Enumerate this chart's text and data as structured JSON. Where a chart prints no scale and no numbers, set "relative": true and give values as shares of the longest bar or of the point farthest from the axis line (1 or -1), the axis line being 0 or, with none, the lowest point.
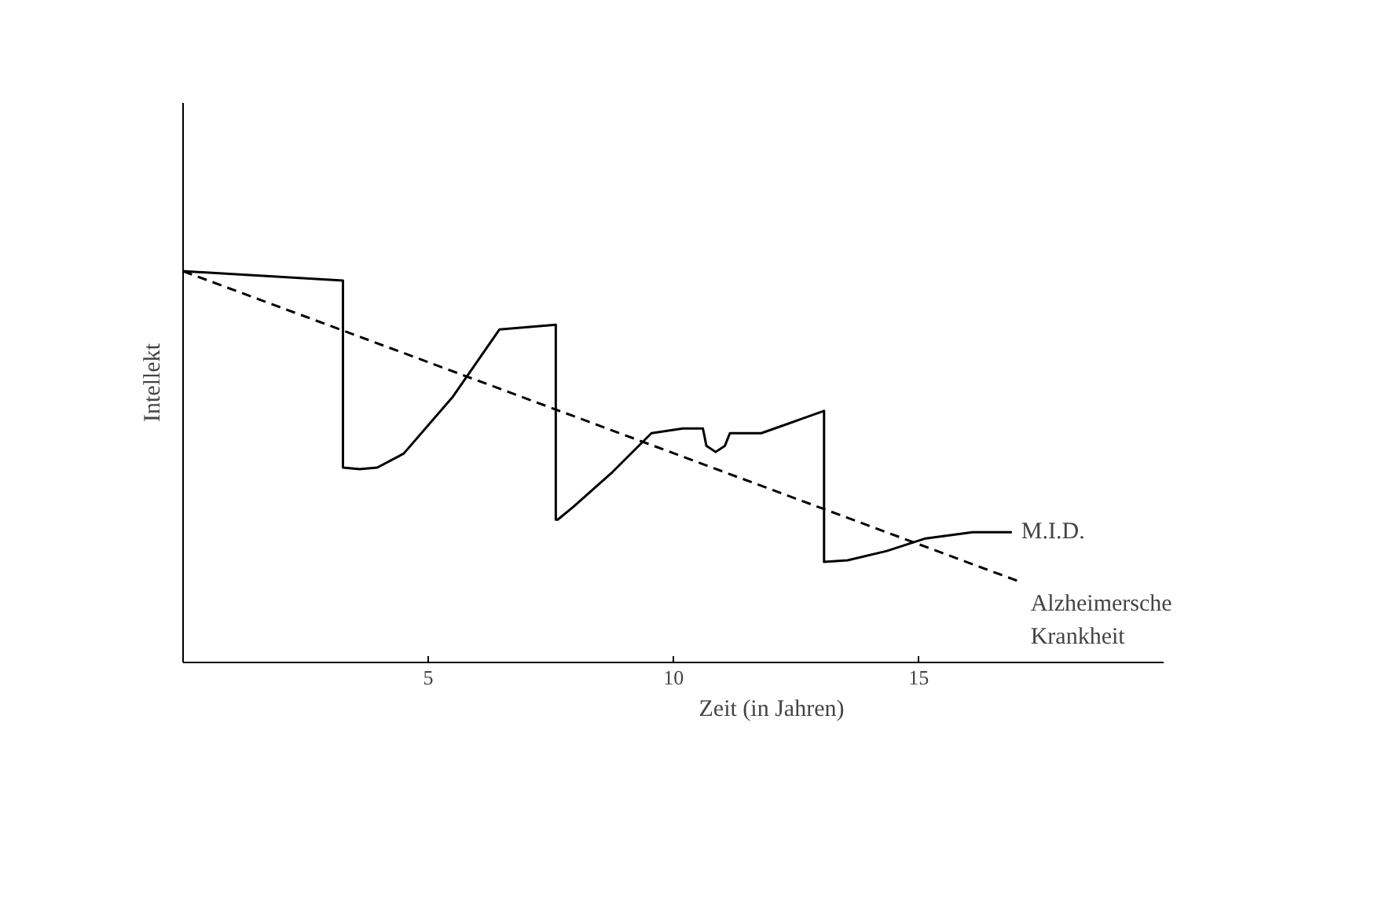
{
  "chart_data": {
    "type": "line",
    "relative": true,
    "xlabel": "Zeit (in Jahren)",
    "ylabel": "Intellekt",
    "xlim": [
      0,
      20
    ],
    "xticks": [
      5,
      10,
      15
    ],
    "tick_labels": "x",
    "grid": false,
    "series": [
      {
        "name": "M.I.D.",
        "color": "#000000",
        "line_style": "solid",
        "x": [
          0,
          3.26,
          3.26,
          3.6,
          3.96,
          4.5,
          5.5,
          6.45,
          7.6,
          7.6,
          7.64,
          7.96,
          8.75,
          9.55,
          10.19,
          10.35,
          10.6,
          10.67,
          10.86,
          11.05,
          11.15,
          11.79,
          13.07,
          13.07,
          13.55,
          14.35,
          15.14,
          16.1,
          16.9
        ],
        "values": [
          1.0,
          0.976,
          0.498,
          0.494,
          0.498,
          0.534,
          0.679,
          0.851,
          0.863,
          0.365,
          0.365,
          0.398,
          0.486,
          0.586,
          0.598,
          0.598,
          0.598,
          0.554,
          0.538,
          0.554,
          0.586,
          0.586,
          0.643,
          0.257,
          0.261,
          0.285,
          0.317,
          0.333,
          0.333
        ]
      },
      {
        "name": "Alzheimersche Krankheit",
        "color": "#000000",
        "line_style": "dashed",
        "x": [
          0,
          17.09
        ],
        "values": [
          1.0,
          0.205
        ]
      }
    ]
  }
}
